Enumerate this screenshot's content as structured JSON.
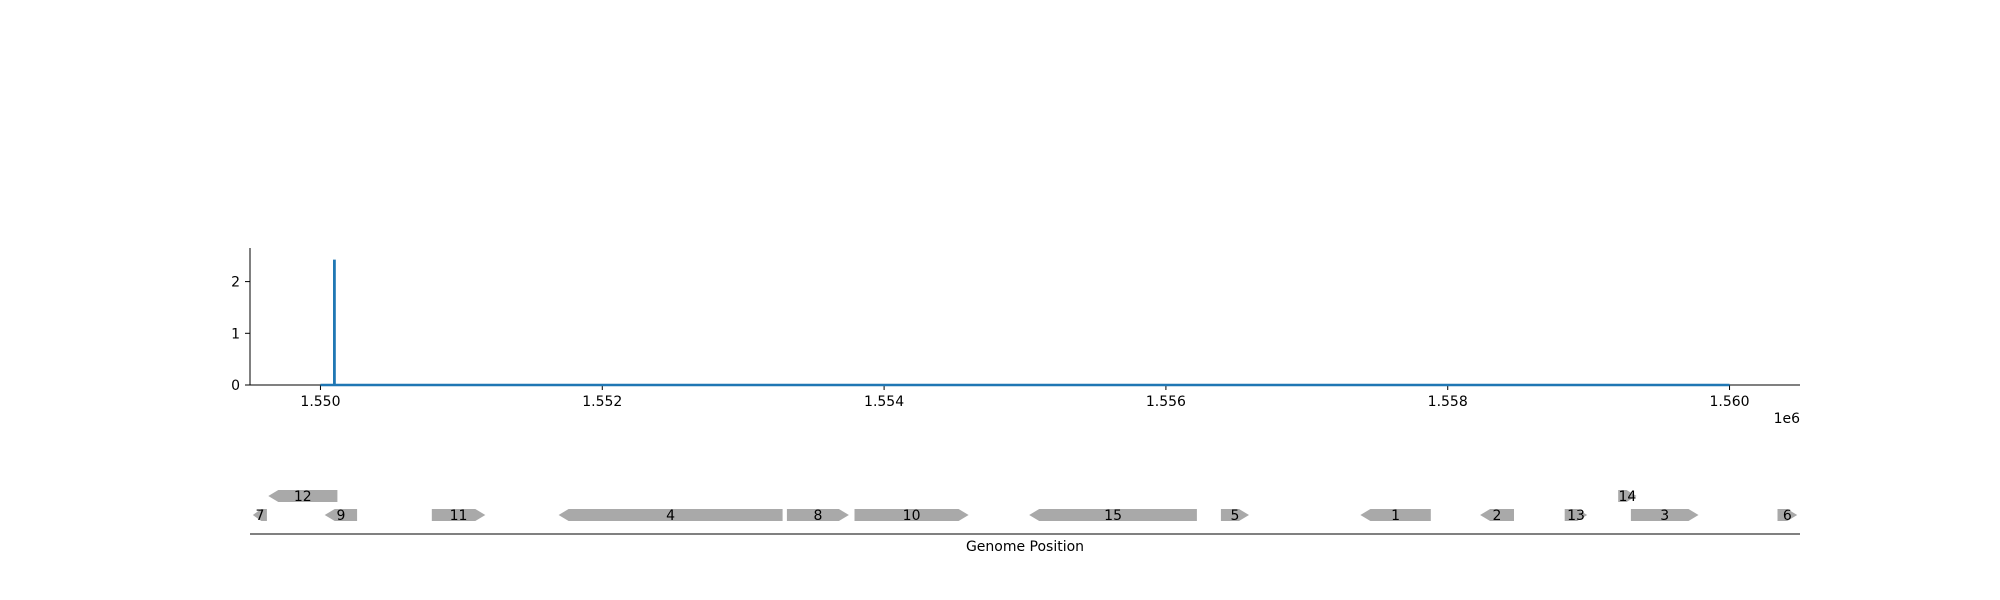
{
  "chart_data": [
    {
      "type": "line",
      "xlim": [
        1549500,
        1560500
      ],
      "ylim": [
        0,
        2.65
      ],
      "x_offset_label": "1e6",
      "x_ticks": [
        1.55,
        1.552,
        1.554,
        1.556,
        1.558,
        1.56
      ],
      "x_tick_labels": [
        "1.550",
        "1.552",
        "1.554",
        "1.556",
        "1.558",
        "1.560"
      ],
      "y_ticks": [
        0,
        1,
        2
      ],
      "y_tick_labels": [
        "0",
        "1",
        "2"
      ],
      "series": [
        {
          "color": "#1f77b4",
          "x": [
            1550000,
            1550098,
            1550098,
            1550100,
            1550100,
            1560000
          ],
          "y": [
            0,
            0,
            2.4,
            2.4,
            0,
            0
          ]
        }
      ],
      "grid": false
    },
    {
      "type": "gene-track",
      "xlabel": "Genome Position",
      "xlim": [
        1549500,
        1560500
      ],
      "feature_color": "#a9a9a9",
      "features": [
        {
          "label": "7",
          "start": 1549520,
          "end": 1549620,
          "strand": -1,
          "row": 0
        },
        {
          "label": "12",
          "start": 1549630,
          "end": 1550120,
          "strand": -1,
          "row": 1
        },
        {
          "label": "9",
          "start": 1550030,
          "end": 1550260,
          "strand": -1,
          "row": 0
        },
        {
          "label": "11",
          "start": 1550790,
          "end": 1551170,
          "strand": 1,
          "row": 0
        },
        {
          "label": "4",
          "start": 1551690,
          "end": 1553280,
          "strand": -1,
          "row": 0
        },
        {
          "label": "8",
          "start": 1553310,
          "end": 1553750,
          "strand": 1,
          "row": 0
        },
        {
          "label": "10",
          "start": 1553790,
          "end": 1554600,
          "strand": 1,
          "row": 0
        },
        {
          "label": "15",
          "start": 1555030,
          "end": 1556220,
          "strand": -1,
          "row": 0
        },
        {
          "label": "5",
          "start": 1556390,
          "end": 1556590,
          "strand": 1,
          "row": 0
        },
        {
          "label": "1",
          "start": 1557380,
          "end": 1557880,
          "strand": -1,
          "row": 0
        },
        {
          "label": "2",
          "start": 1558230,
          "end": 1558470,
          "strand": -1,
          "row": 0
        },
        {
          "label": "13",
          "start": 1558830,
          "end": 1558990,
          "strand": 1,
          "row": 0
        },
        {
          "label": "14",
          "start": 1559210,
          "end": 1559340,
          "strand": 1,
          "row": 1
        },
        {
          "label": "3",
          "start": 1559300,
          "end": 1559780,
          "strand": 1,
          "row": 0
        },
        {
          "label": "6",
          "start": 1560340,
          "end": 1560480,
          "strand": 1,
          "row": 0
        }
      ]
    }
  ]
}
